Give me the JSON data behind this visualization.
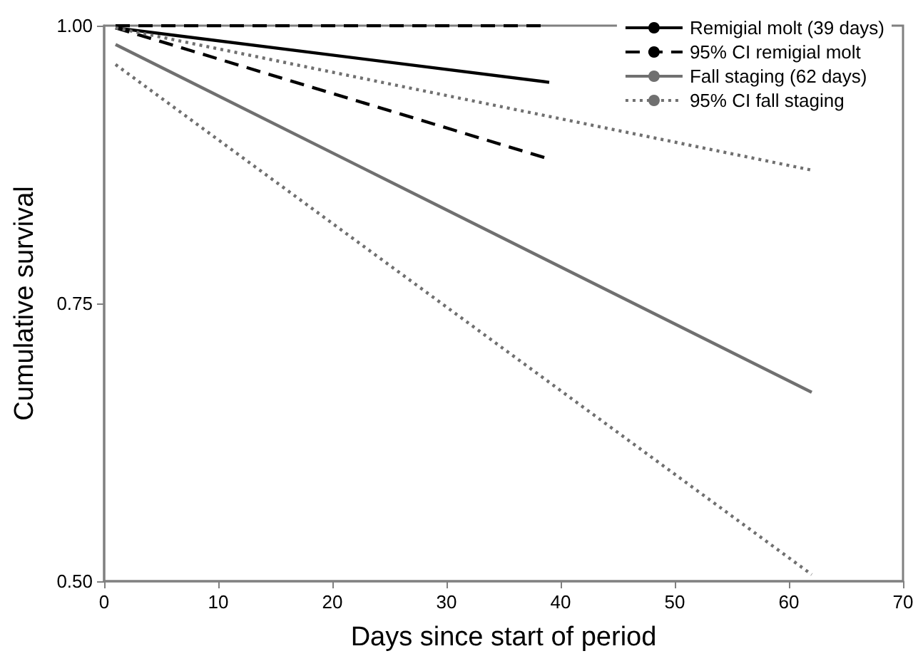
{
  "chart_data": {
    "type": "line",
    "xlabel": "Days since start of period",
    "ylabel": "Cumulative survival",
    "xlim": [
      0,
      70
    ],
    "xticks": [
      0,
      10,
      20,
      30,
      40,
      50,
      60,
      70
    ],
    "ylim": [
      0.5,
      1
    ],
    "yticks": [
      {
        "value": 0.5,
        "label": "0.50"
      },
      {
        "value": 0.75,
        "label": "0.75"
      },
      {
        "value": 1,
        "label": "1.00"
      }
    ],
    "grid": false,
    "legend": "top right",
    "marker": "none",
    "series": [
      {
        "name": "Remigial molt (39 days)",
        "color": "#000000",
        "line_style": "solid",
        "x": [
          1,
          39
        ],
        "values": [
          0.998,
          0.949
        ]
      },
      {
        "name": "95% CI remigial molt",
        "color": "#000000",
        "line_style": "dashed",
        "x": [
          1,
          39
        ],
        "values": [
          1.0,
          1.0
        ]
      },
      {
        "color": "#000000",
        "line_style": "dashed",
        "x": [
          1,
          39
        ],
        "values": [
          0.998,
          0.88
        ]
      },
      {
        "name": "Fall staging (62 days)",
        "color": "#707070",
        "line_style": "solid",
        "x": [
          1,
          62
        ],
        "values": [
          0.983,
          0.67
        ]
      },
      {
        "name": "95% CI fall staging",
        "color": "#707070",
        "line_style": "dotted",
        "x": [
          1,
          62
        ],
        "values": [
          0.998,
          0.87
        ]
      },
      {
        "color": "#707070",
        "line_style": "dotted",
        "x": [
          1,
          62
        ],
        "values": [
          0.965,
          0.506
        ]
      }
    ]
  }
}
